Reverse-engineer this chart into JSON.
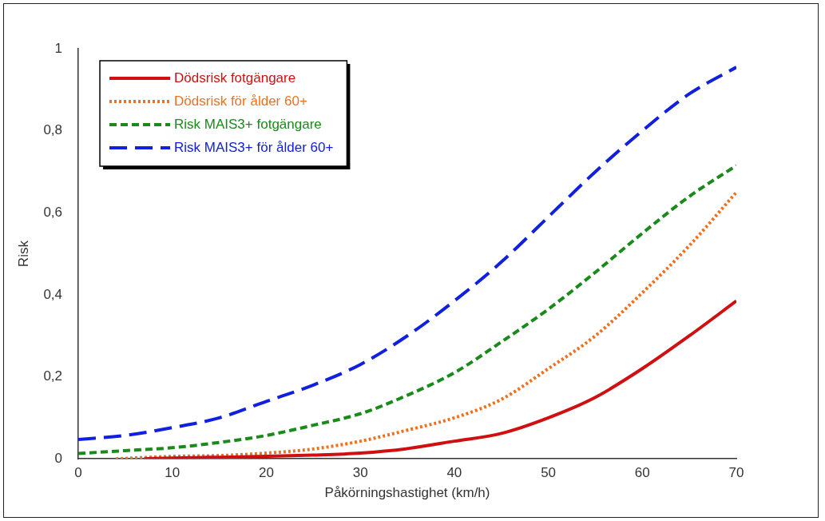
{
  "chart_data": {
    "type": "line",
    "xlabel": "Påkörningshastighet (km/h)",
    "ylabel": "Risk",
    "xlim": [
      0,
      70
    ],
    "xticks": [
      0,
      10,
      20,
      30,
      40,
      50,
      60,
      70
    ],
    "ylim": [
      0,
      1
    ],
    "yticks": [
      {
        "value": 0,
        "label": "0"
      },
      {
        "value": 0.2,
        "label": "0,2"
      },
      {
        "value": 0.4,
        "label": "0,4"
      },
      {
        "value": 0.6,
        "label": "0,6"
      },
      {
        "value": 0.8,
        "label": "0,8"
      },
      {
        "value": 1,
        "label": "1"
      }
    ],
    "grid": false,
    "legend": "top left",
    "marker": "none",
    "series": [
      {
        "name": "Dödsrisk fotgängare",
        "color": "#d01010",
        "line_style": "solid",
        "x": [
          7,
          10,
          15,
          20,
          25,
          30,
          35,
          40,
          45,
          50,
          55,
          60,
          65,
          70
        ],
        "values": [
          0,
          0.002,
          0.004,
          0.006,
          0.009,
          0.014,
          0.025,
          0.043,
          0.062,
          0.1,
          0.15,
          0.22,
          0.3,
          0.385
        ]
      },
      {
        "name": "Dödsrisk för ålder 60+",
        "color": "#f07020",
        "line_style": "dotted",
        "x": [
          4,
          10,
          15,
          20,
          25,
          30,
          35,
          40,
          45,
          50,
          55,
          60,
          65,
          70
        ],
        "values": [
          0,
          0.006,
          0.008,
          0.014,
          0.024,
          0.043,
          0.07,
          0.1,
          0.145,
          0.22,
          0.3,
          0.405,
          0.52,
          0.65
        ]
      },
      {
        "name": "Risk MAIS3+ fotgängare",
        "color": "#1a8a1a",
        "line_style": "dashed",
        "x": [
          0,
          5,
          10,
          15,
          20,
          25,
          30,
          35,
          40,
          45,
          50,
          55,
          60,
          65,
          70
        ],
        "values": [
          0.013,
          0.02,
          0.027,
          0.04,
          0.057,
          0.082,
          0.11,
          0.155,
          0.21,
          0.285,
          0.365,
          0.455,
          0.55,
          0.64,
          0.715
        ]
      },
      {
        "name": "Risk MAIS3+ för ålder 60+",
        "color": "#1020e0",
        "line_style": "longdash",
        "x": [
          0,
          5,
          10,
          15,
          20,
          25,
          30,
          35,
          40,
          45,
          50,
          55,
          60,
          65,
          70
        ],
        "values": [
          0.047,
          0.057,
          0.076,
          0.1,
          0.14,
          0.18,
          0.23,
          0.3,
          0.385,
          0.48,
          0.59,
          0.7,
          0.8,
          0.89,
          0.955
        ]
      }
    ]
  }
}
